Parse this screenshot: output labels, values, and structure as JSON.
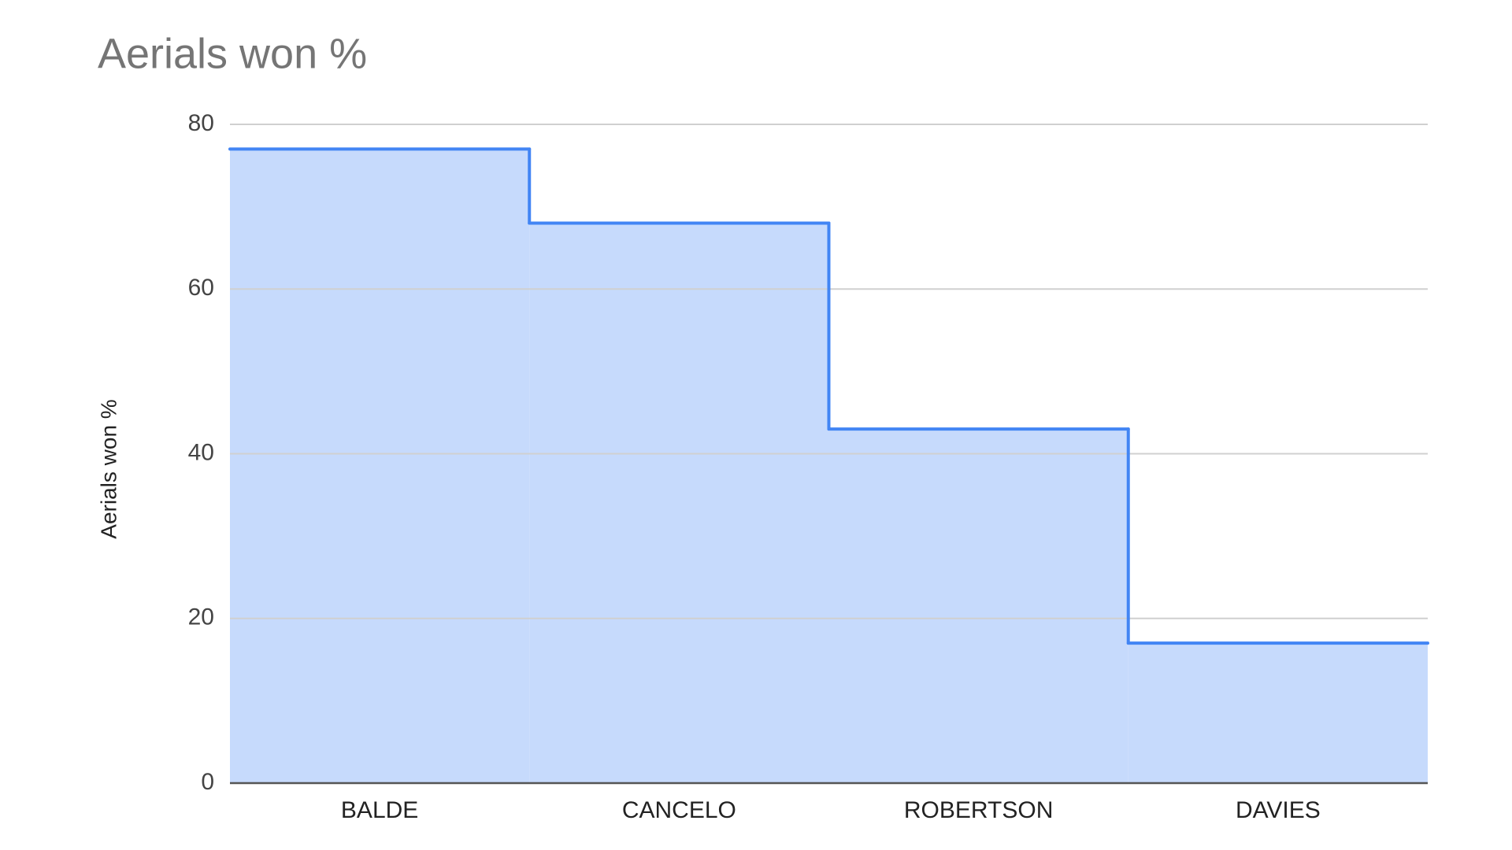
{
  "chart_data": {
    "type": "stepped-area",
    "title": "Aerials won %",
    "y_label": "Aerials won %",
    "categories": [
      "BALDE",
      "CANCELO",
      "ROBERTSON",
      "DAVIES"
    ],
    "values": [
      77,
      68,
      43,
      17
    ],
    "color": "#4285f4",
    "fill_color": "#c6dafc",
    "ylim": [
      0,
      80
    ],
    "yticks": [
      0,
      20,
      40,
      60,
      80
    ],
    "grid": true
  }
}
